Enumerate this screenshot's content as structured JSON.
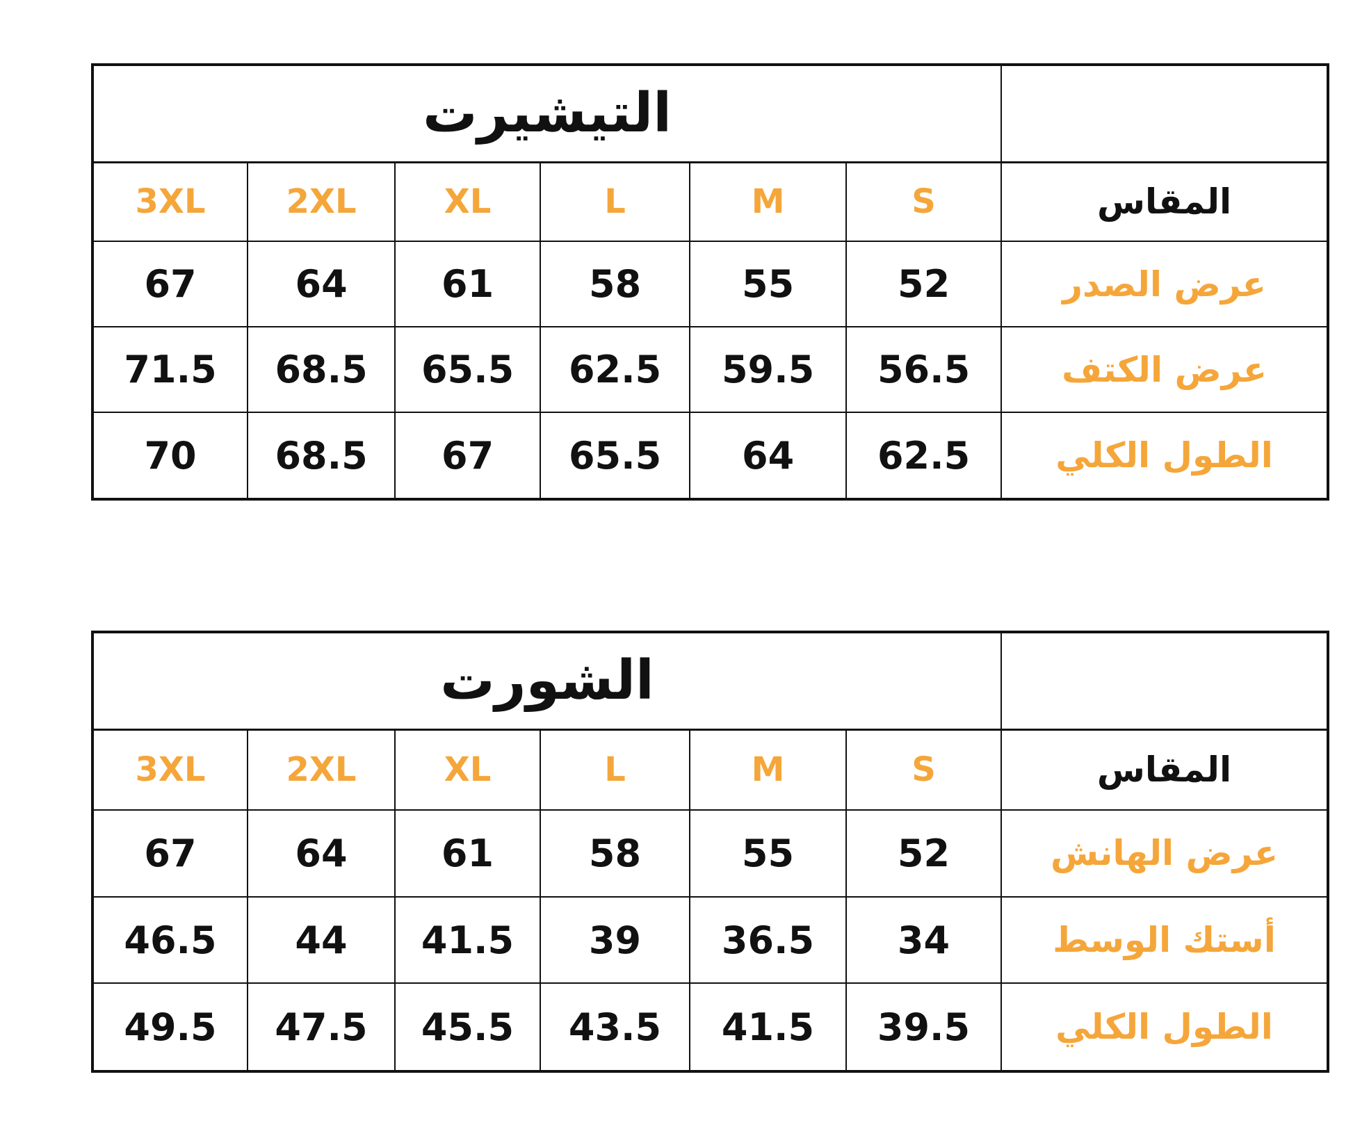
{
  "colors": {
    "accent": "#f5a63a",
    "text": "#111111"
  },
  "tables": [
    {
      "title": "التيشيرت",
      "header_label": "المقاس",
      "sizes": [
        "S",
        "M",
        "L",
        "XL",
        "2XL",
        "3XL"
      ],
      "rows": [
        {
          "label": "عرض الصدر",
          "values": [
            "52",
            "55",
            "58",
            "61",
            "64",
            "67"
          ]
        },
        {
          "label": "عرض الكتف",
          "values": [
            "56.5",
            "59.5",
            "62.5",
            "65.5",
            "68.5",
            "71.5"
          ]
        },
        {
          "label": "الطول الكلي",
          "values": [
            "62.5",
            "64",
            "65.5",
            "67",
            "68.5",
            "70"
          ]
        }
      ]
    },
    {
      "title": "الشورت",
      "header_label": "المقاس",
      "sizes": [
        "S",
        "M",
        "L",
        "XL",
        "2XL",
        "3XL"
      ],
      "rows": [
        {
          "label": "عرض الهانش",
          "values": [
            "52",
            "55",
            "58",
            "61",
            "64",
            "67"
          ]
        },
        {
          "label": "أستك الوسط",
          "values": [
            "34",
            "36.5",
            "39",
            "41.5",
            "44",
            "46.5"
          ]
        },
        {
          "label": "الطول الكلي",
          "values": [
            "39.5",
            "41.5",
            "43.5",
            "45.5",
            "47.5",
            "49.5"
          ]
        }
      ]
    }
  ]
}
